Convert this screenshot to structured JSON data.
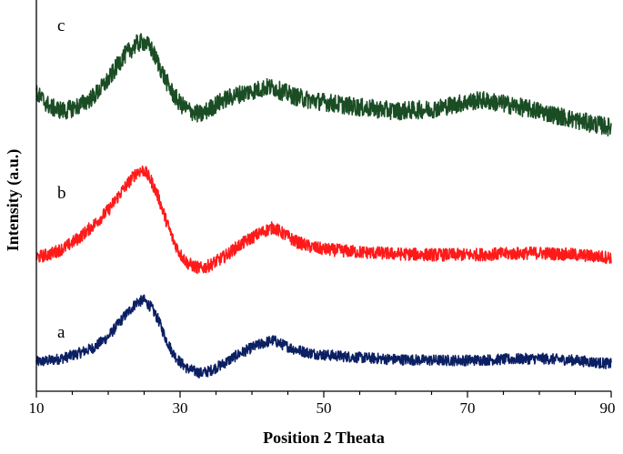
{
  "chart_data": {
    "type": "line",
    "xlabel": "Position 2 Theata",
    "ylabel": "Intensity (a.u.)",
    "xlim": [
      10,
      90
    ],
    "x_ticks": [
      10,
      30,
      50,
      70,
      90
    ],
    "x_tick_labels": [
      "10",
      "30",
      "50",
      "70",
      "90"
    ],
    "y_ticks_shown": false,
    "grid": false,
    "legend": "none",
    "series": [
      {
        "name": "a",
        "color": "#0b1f63",
        "x": [
          10,
          12,
          14,
          16,
          18,
          20,
          22,
          24,
          25,
          26,
          27,
          28,
          29,
          30,
          31,
          32,
          33,
          34,
          36,
          38,
          40,
          42,
          43,
          44,
          46,
          48,
          50,
          55,
          60,
          65,
          70,
          75,
          80,
          85,
          90
        ],
        "y": [
          22,
          24,
          27,
          32,
          38,
          50,
          70,
          88,
          90,
          82,
          68,
          48,
          32,
          22,
          15,
          12,
          10,
          12,
          20,
          30,
          38,
          44,
          46,
          42,
          36,
          32,
          30,
          27,
          25,
          24,
          24,
          25,
          26,
          24,
          20
        ]
      },
      {
        "name": "b",
        "color": "#ff1a1a",
        "x": [
          10,
          12,
          14,
          16,
          18,
          20,
          22,
          24,
          25,
          26,
          27,
          28,
          29,
          30,
          31,
          32,
          33,
          34,
          36,
          38,
          40,
          42,
          43,
          44,
          46,
          48,
          50,
          55,
          60,
          65,
          70,
          75,
          80,
          85,
          90
        ],
        "y": [
          22,
          26,
          33,
          44,
          58,
          74,
          96,
          116,
          118,
          106,
          88,
          64,
          42,
          26,
          16,
          12,
          10,
          13,
          22,
          34,
          44,
          52,
          55,
          50,
          40,
          34,
          31,
          28,
          26,
          25,
          25,
          26,
          27,
          25,
          22
        ]
      },
      {
        "name": "c",
        "color": "#1a4d24",
        "x": [
          10,
          12,
          14,
          16,
          18,
          20,
          22,
          24,
          25,
          26,
          27,
          28,
          29,
          30,
          31,
          32,
          33,
          34,
          36,
          38,
          40,
          42,
          43,
          44,
          46,
          48,
          50,
          55,
          60,
          65,
          70,
          72,
          75,
          80,
          85,
          90
        ],
        "y": [
          55,
          40,
          36,
          42,
          52,
          70,
          95,
          110,
          112,
          104,
          88,
          70,
          55,
          44,
          38,
          34,
          32,
          38,
          48,
          54,
          58,
          62,
          62,
          58,
          52,
          48,
          46,
          40,
          36,
          38,
          46,
          48,
          44,
          36,
          26,
          18
        ]
      }
    ]
  }
}
